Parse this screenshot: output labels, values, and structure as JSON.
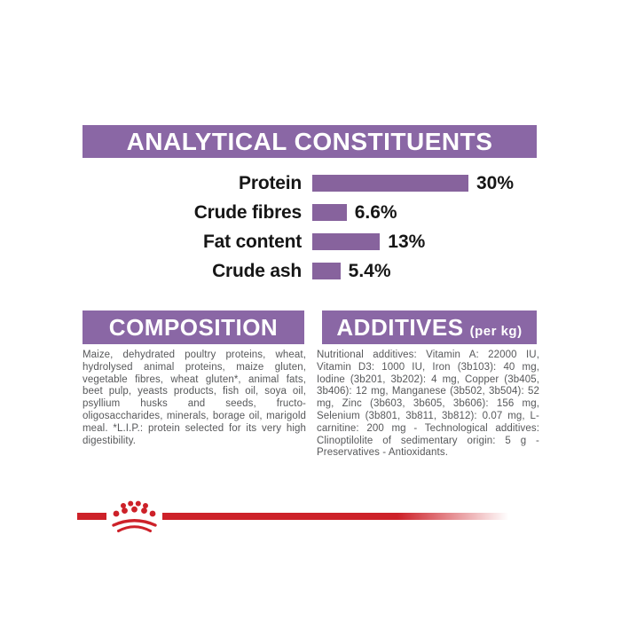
{
  "colors": {
    "banner_purple": "#8a67a5",
    "bar_purple": "#87639d",
    "brand_red": "#cd2129",
    "body_text_gray": "#57585a",
    "label_black": "#161616",
    "background": "#ffffff"
  },
  "analytical": {
    "title": "ANALYTICAL CONSTITUENTS"
  },
  "chart_data": {
    "type": "bar",
    "orientation": "horizontal",
    "title": "ANALYTICAL CONSTITUENTS",
    "categories": [
      "Protein",
      "Crude fibres",
      "Fat content",
      "Crude ash"
    ],
    "values": [
      30,
      6.6,
      13,
      5.4
    ],
    "value_labels": [
      "30%",
      "6.6%",
      "13%",
      "5.4%"
    ],
    "unit": "%",
    "xlim": [
      0,
      30
    ],
    "bar_color": "#87639d",
    "grid": false,
    "legend": false
  },
  "composition": {
    "title": "COMPOSITION",
    "body": "Maize, dehydrated poultry proteins, wheat, hydrolysed animal proteins, maize gluten, vegetable fibres, wheat gluten*, animal fats, beet pulp, yeasts products, fish oil, soya oil, psyllium husks and seeds, fructo-oligosaccharides, minerals, borage oil, marigold meal. *L.I.P.: protein selected for its very high digestibility."
  },
  "additives": {
    "title": "ADDITIVES",
    "unit_suffix": "(per kg)",
    "body": "Nutritional additives: Vitamin A: 22000 IU, Vitamin D3: 1000 IU, Iron (3b103): 40 mg, Iodine (3b201, 3b202): 4 mg, Copper (3b405, 3b406): 12 mg, Manganese (3b502, 3b504): 52 mg, Zinc (3b603, 3b605, 3b606): 156 mg, Selenium (3b801, 3b811, 3b812): 0.07 mg, L-carnitine: 200 mg - Technological additives: Clinoptilolite of sedimentary origin: 5 g - Preservatives - Antioxidants."
  },
  "footer": {
    "brand_icon": "royal-canin-crown-icon"
  }
}
